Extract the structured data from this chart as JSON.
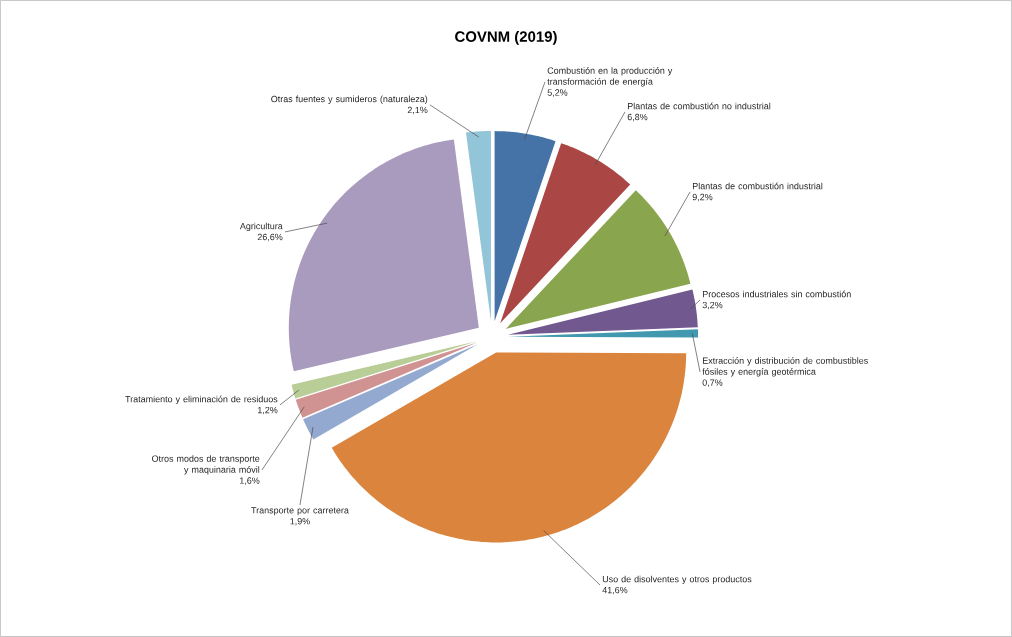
{
  "chart_data": {
    "type": "pie",
    "title": "COVNM (2019)",
    "categories": [
      "Combustión en la producción y transformación de energía",
      "Plantas de combustión no industrial",
      "Plantas de combustión industrial",
      "Procesos industriales sin combustión",
      "Extracción y distribución de combustibles fósiles y energía geotérmica",
      "Uso de disolventes y otros productos",
      "Transporte por carretera",
      "Otros modos de transporte y maquinaria móvil",
      "Tratamiento y eliminación de residuos",
      "Agricultura",
      "Otras fuentes y sumideros (naturaleza)"
    ],
    "values": [
      5.2,
      6.8,
      9.2,
      3.2,
      0.7,
      41.6,
      1.9,
      1.6,
      1.2,
      26.6,
      2.1
    ],
    "value_labels": [
      "5,2%",
      "6,8%",
      "9,2%",
      "3,2%",
      "0,7%",
      "41,6%",
      "1,9%",
      "1,6%",
      "1,2%",
      "26,6%",
      "2,1%"
    ],
    "colors": [
      "#4572a7",
      "#aa4643",
      "#89a54e",
      "#71588f",
      "#4198af",
      "#db843d",
      "#93a9cf",
      "#d19392",
      "#b9cd96",
      "#a99bbd",
      "#92c5d8"
    ]
  }
}
